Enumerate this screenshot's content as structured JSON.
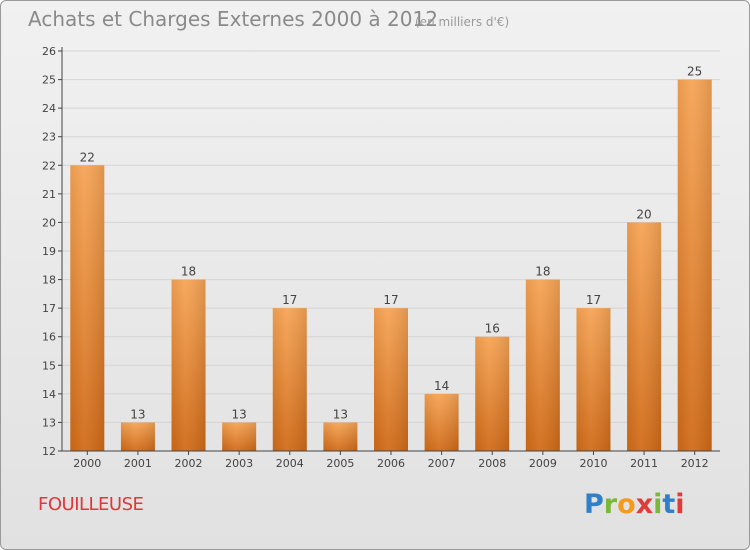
{
  "title": "Achats et Charges Externes 2000 à 2012",
  "unit": "(en milliers d'€)",
  "commune": "FOUILLEUSE",
  "brand": {
    "letters": [
      "P",
      "r",
      "o",
      "x",
      "i",
      "t",
      "i"
    ],
    "colors": [
      "#2f80c8",
      "#7bb83a",
      "#f39a1f",
      "#e23a3a",
      "#7bb83a",
      "#2f80c8",
      "#e23a3a"
    ]
  },
  "colors": {
    "bar_light": "#f6a455",
    "bar_dark": "#d06a17",
    "grid": "#d4d4d4",
    "axis": "#444444"
  },
  "chart_data": {
    "type": "bar",
    "categories": [
      "2000",
      "2001",
      "2002",
      "2003",
      "2004",
      "2005",
      "2006",
      "2007",
      "2008",
      "2009",
      "2010",
      "2011",
      "2012"
    ],
    "values": [
      22,
      13,
      18,
      13,
      17,
      13,
      17,
      14,
      16,
      18,
      17,
      20,
      25
    ],
    "ylim": [
      12,
      26
    ],
    "yticks": [
      12,
      13,
      14,
      15,
      16,
      17,
      18,
      19,
      20,
      21,
      22,
      23,
      24,
      25,
      26
    ],
    "grid": true,
    "data_labels": true
  }
}
